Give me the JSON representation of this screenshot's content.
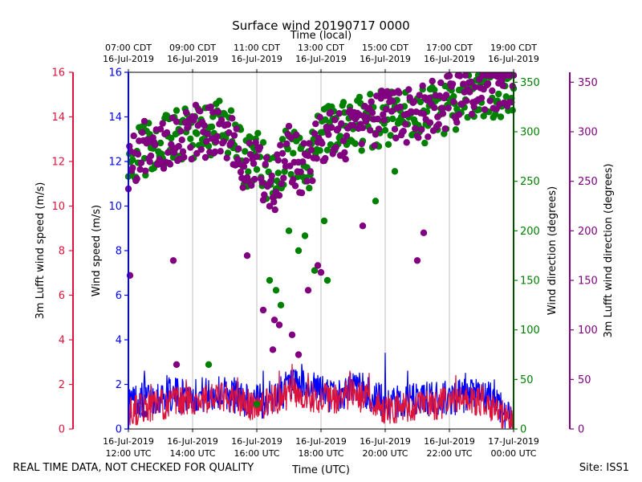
{
  "chart_data": {
    "type": "scatter+line",
    "title": "Surface wind 20190717 0000",
    "top_axis_title": "Time (local)",
    "xlabel": "Time (UTC)",
    "footer_left": "REAL TIME DATA, NOT CHECKED FOR QUALITY",
    "footer_right": "Site: ISS1",
    "x_range_hours": [
      12,
      24
    ],
    "bottom_ticks": [
      {
        "hour": 12,
        "line1": "16-Jul-2019",
        "line2": "12:00 UTC"
      },
      {
        "hour": 14,
        "line1": "16-Jul-2019",
        "line2": "14:00 UTC"
      },
      {
        "hour": 16,
        "line1": "16-Jul-2019",
        "line2": "16:00 UTC"
      },
      {
        "hour": 18,
        "line1": "16-Jul-2019",
        "line2": "18:00 UTC"
      },
      {
        "hour": 20,
        "line1": "16-Jul-2019",
        "line2": "20:00 UTC"
      },
      {
        "hour": 22,
        "line1": "16-Jul-2019",
        "line2": "22:00 UTC"
      },
      {
        "hour": 24,
        "line1": "17-Jul-2019",
        "line2": "00:00 UTC"
      }
    ],
    "top_ticks": [
      {
        "hour": 12,
        "line1": "07:00 CDT",
        "line2": "16-Jul-2019"
      },
      {
        "hour": 14,
        "line1": "09:00 CDT",
        "line2": "16-Jul-2019"
      },
      {
        "hour": 16,
        "line1": "11:00 CDT",
        "line2": "16-Jul-2019"
      },
      {
        "hour": 18,
        "line1": "13:00 CDT",
        "line2": "16-Jul-2019"
      },
      {
        "hour": 20,
        "line1": "15:00 CDT",
        "line2": "16-Jul-2019"
      },
      {
        "hour": 22,
        "line1": "17:00 CDT",
        "line2": "16-Jul-2019"
      },
      {
        "hour": 24,
        "line1": "19:00 CDT",
        "line2": "16-Jul-2019"
      }
    ],
    "axes": {
      "lufft_speed": {
        "label": "3m Lufft wind speed (m/s)",
        "color": "#dc143c",
        "ylim": [
          0,
          16
        ],
        "ticks": [
          0,
          2,
          4,
          6,
          8,
          10,
          12,
          14,
          16
        ]
      },
      "wind_speed": {
        "label": "Wind speed (m/s)",
        "color": "#0000ff",
        "ylim": [
          0,
          16
        ],
        "ticks": [
          0,
          2,
          4,
          6,
          8,
          10,
          12,
          14,
          16
        ]
      },
      "wind_dir": {
        "label": "Wind direction (degrees)",
        "color": "#008000",
        "ylim": [
          0,
          360
        ],
        "ticks": [
          0,
          50,
          100,
          150,
          200,
          250,
          300,
          350
        ]
      },
      "lufft_dir": {
        "label": "3m Lufft wind direction (degrees)",
        "color": "#800080",
        "ylim": [
          0,
          360
        ],
        "ticks": [
          0,
          50,
          100,
          150,
          200,
          250,
          300,
          350
        ]
      }
    },
    "series": [
      {
        "name": "Wind speed (m/s)",
        "kind": "line",
        "axis": "wind_speed",
        "color": "#0000ff",
        "sample_minutes": 1,
        "profile": [
          [
            12.0,
            1.2
          ],
          [
            13.0,
            1.5
          ],
          [
            14.0,
            1.5
          ],
          [
            15.0,
            1.6
          ],
          [
            16.0,
            1.2
          ],
          [
            16.5,
            1.4
          ],
          [
            17.0,
            1.9
          ],
          [
            18.0,
            1.7
          ],
          [
            18.5,
            1.4
          ],
          [
            19.0,
            1.9
          ],
          [
            19.8,
            1.3
          ],
          [
            20.0,
            1.1
          ],
          [
            21.0,
            1.3
          ],
          [
            22.0,
            1.4
          ],
          [
            23.0,
            1.5
          ],
          [
            23.5,
            1.2
          ],
          [
            24.0,
            0.3
          ]
        ],
        "amplitude": 0.8,
        "spikes": [
          [
            12.5,
            2.6
          ],
          [
            13.2,
            2.4
          ],
          [
            15.3,
            2.3
          ],
          [
            16.2,
            2.6
          ],
          [
            17.4,
            2.9
          ],
          [
            17.9,
            2.4
          ],
          [
            19.3,
            2.5
          ],
          [
            20.0,
            3.4
          ],
          [
            20.7,
            2.6
          ],
          [
            21.3,
            2.1
          ],
          [
            22.5,
            2.5
          ],
          [
            23.4,
            2.2
          ]
        ]
      },
      {
        "name": "3m Lufft wind speed (m/s)",
        "kind": "line",
        "axis": "lufft_speed",
        "color": "#dc143c",
        "sample_minutes": 1,
        "profile": [
          [
            12.0,
            0.8
          ],
          [
            13.0,
            1.1
          ],
          [
            14.0,
            1.3
          ],
          [
            15.0,
            1.4
          ],
          [
            16.0,
            1.0
          ],
          [
            16.5,
            1.3
          ],
          [
            17.0,
            1.6
          ],
          [
            18.0,
            1.4
          ],
          [
            18.5,
            1.3
          ],
          [
            19.0,
            1.6
          ],
          [
            20.0,
            0.9
          ],
          [
            21.0,
            1.0
          ],
          [
            22.0,
            1.2
          ],
          [
            23.0,
            1.3
          ],
          [
            24.0,
            0.2
          ]
        ],
        "amplitude": 0.7,
        "spikes": [
          [
            12.7,
            2.0
          ],
          [
            13.8,
            2.2
          ],
          [
            15.4,
            2.3
          ],
          [
            16.7,
            2.6
          ],
          [
            17.1,
            2.9
          ],
          [
            17.6,
            2.5
          ],
          [
            18.9,
            2.6
          ],
          [
            19.5,
            2.5
          ],
          [
            22.2,
            2.4
          ],
          [
            23.0,
            2.0
          ]
        ]
      },
      {
        "name": "Wind direction (degrees)",
        "kind": "scatter",
        "axis": "wind_dir",
        "color": "#008000",
        "sample_minutes": 2,
        "jitter_deg": 28,
        "profile": [
          [
            12.0,
            275
          ],
          [
            13.0,
            290
          ],
          [
            14.0,
            300
          ],
          [
            15.0,
            305
          ],
          [
            15.6,
            270
          ],
          [
            16.0,
            275
          ],
          [
            16.5,
            250
          ],
          [
            17.0,
            285
          ],
          [
            17.5,
            260
          ],
          [
            18.0,
            300
          ],
          [
            19.0,
            305
          ],
          [
            20.0,
            315
          ],
          [
            21.0,
            315
          ],
          [
            22.0,
            320
          ],
          [
            23.0,
            340
          ],
          [
            24.0,
            345
          ]
        ],
        "outliers": [
          [
            16.4,
            150
          ],
          [
            16.6,
            140
          ],
          [
            16.75,
            125
          ],
          [
            17.0,
            200
          ],
          [
            17.3,
            180
          ],
          [
            17.5,
            195
          ],
          [
            17.8,
            160
          ],
          [
            18.1,
            210
          ],
          [
            18.2,
            150
          ],
          [
            14.5,
            65
          ],
          [
            16.0,
            25
          ],
          [
            19.7,
            230
          ],
          [
            20.3,
            260
          ]
        ]
      },
      {
        "name": "3m Lufft wind direction (degrees)",
        "kind": "scatter",
        "axis": "lufft_dir",
        "color": "#800080",
        "sample_minutes": 2,
        "jitter_deg": 28,
        "profile": [
          [
            12.0,
            270
          ],
          [
            12.5,
            285
          ],
          [
            13.0,
            290
          ],
          [
            14.0,
            300
          ],
          [
            15.0,
            305
          ],
          [
            15.6,
            260
          ],
          [
            16.0,
            270
          ],
          [
            16.5,
            240
          ],
          [
            17.0,
            280
          ],
          [
            17.5,
            260
          ],
          [
            18.0,
            295
          ],
          [
            19.0,
            300
          ],
          [
            20.0,
            315
          ],
          [
            21.0,
            318
          ],
          [
            22.0,
            330
          ],
          [
            23.0,
            345
          ],
          [
            24.0,
            355
          ]
        ],
        "outliers": [
          [
            12.05,
            155
          ],
          [
            13.4,
            170
          ],
          [
            15.7,
            175
          ],
          [
            16.2,
            120
          ],
          [
            16.7,
            105
          ],
          [
            16.55,
            110
          ],
          [
            17.1,
            95
          ],
          [
            17.3,
            75
          ],
          [
            17.6,
            140
          ],
          [
            17.9,
            165
          ],
          [
            18.0,
            158
          ],
          [
            21.0,
            170
          ],
          [
            21.2,
            198
          ],
          [
            19.3,
            205
          ],
          [
            12.5,
            15
          ],
          [
            13.5,
            65
          ],
          [
            16.5,
            80
          ]
        ]
      }
    ]
  }
}
